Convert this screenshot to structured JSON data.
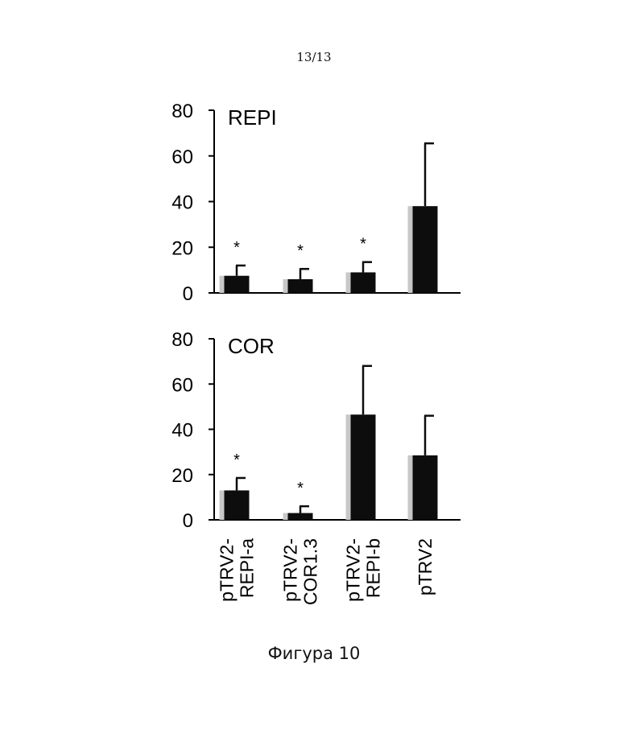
{
  "page": {
    "page_number": "13/13",
    "caption": "Фигура 10"
  },
  "colors": {
    "bar": "#0d0d0d",
    "axis": "#000000",
    "bar_shadow": "#c8c8c8"
  },
  "chart_data": [
    {
      "type": "bar",
      "title": "REPI",
      "categories": [
        "pTRV2-REPI-a",
        "pTRV2-COR1.3",
        "pTRV2-REPI-b",
        "pTRV2"
      ],
      "values": [
        7.5,
        6,
        9,
        38
      ],
      "error_bars": [
        4.5,
        4.5,
        4.5,
        27.5
      ],
      "significance": [
        "*",
        "*",
        "*",
        ""
      ],
      "ylim": [
        0,
        80
      ],
      "yticks": [
        "0",
        "20",
        "40",
        "60",
        "80"
      ],
      "xlabel": "",
      "ylabel": ""
    },
    {
      "type": "bar",
      "title": "COR",
      "categories": [
        "pTRV2-REPI-a",
        "pTRV2-COR1.3",
        "pTRV2-REPI-b",
        "pTRV2"
      ],
      "values": [
        13,
        3,
        46.5,
        28.5
      ],
      "error_bars": [
        5.5,
        3,
        21.5,
        17.5
      ],
      "significance": [
        "*",
        "*",
        "",
        ""
      ],
      "ylim": [
        0,
        80
      ],
      "yticks": [
        "0",
        "20",
        "40",
        "60",
        "80"
      ],
      "xlabel": "",
      "ylabel": ""
    }
  ],
  "category_labels": [
    {
      "line1": "pTRV2-",
      "line2": "REPI-a"
    },
    {
      "line1": "pTRV2-",
      "line2": "COR1.3"
    },
    {
      "line1": "pTRV2-",
      "line2": "REPI-b"
    },
    {
      "line1": "pTRV2",
      "line2": ""
    }
  ]
}
